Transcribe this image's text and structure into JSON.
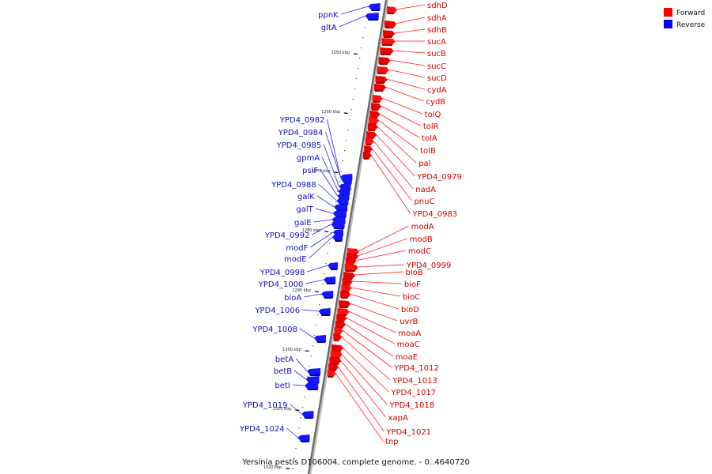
{
  "caption": "Yersinia pestis D106004, complete genome. - 0..4640720",
  "legend": [
    {
      "label": "Forward",
      "color": "#ff0000"
    },
    {
      "label": "Reverse",
      "color": "#0000ff"
    }
  ],
  "ruler_ticks": [
    "1250 kbp",
    "1260 kbp",
    "1270 kbp",
    "1280 kbp",
    "1290 kbp",
    "1300 kbp",
    "1310 kbp",
    "1320 kbp"
  ],
  "forward_genes": [
    "sdhD",
    "sdhA",
    "sdhB",
    "sucA",
    "sucB",
    "sucC",
    "sucD",
    "cydA",
    "cydB",
    "tolQ",
    "tolR",
    "tolA",
    "tolB",
    "pal",
    "YPD4_0979",
    "nadA",
    "pnuC",
    "YPD4_0983",
    "modA",
    "modB",
    "modC",
    "YPD4_0999",
    "bioB",
    "bioF",
    "bioC",
    "bioD",
    "uvrB",
    "moaA",
    "moaC",
    "moaE",
    "YPD4_1012",
    "YPD4_1013",
    "YPD4_1017",
    "YPD4_1018",
    "xapA",
    "YPD4_1021",
    "tnp"
  ],
  "reverse_genes": [
    "ppnK",
    "gltA",
    "YPD4_0982",
    "YPD4_0984",
    "YPD4_0985",
    "gpmA",
    "psiF",
    "YPD4_0988",
    "galK",
    "galT",
    "galE",
    "YPD4_0992",
    "modF",
    "modE",
    "YPD4_0998",
    "YPD4_1000",
    "bioA",
    "YPD4_1006",
    "YPD4_1008",
    "betA",
    "betB",
    "betI",
    "YPD4_1019",
    "YPD4_1024"
  ]
}
